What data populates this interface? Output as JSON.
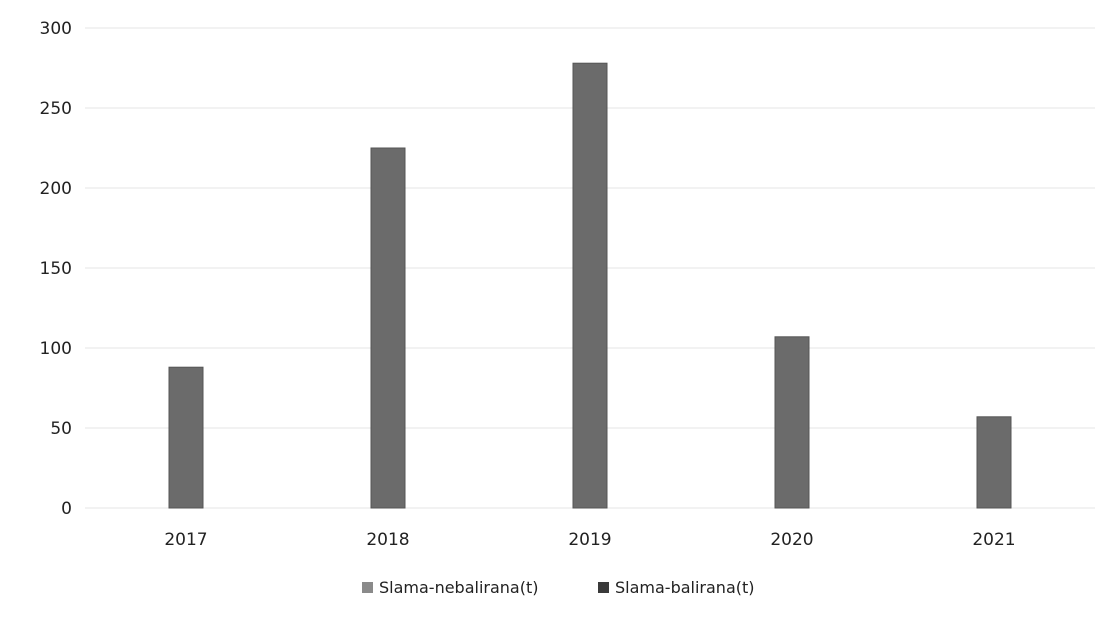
{
  "chart_data": {
    "type": "bar",
    "categories": [
      "2017",
      "2018",
      "2019",
      "2020",
      "2021"
    ],
    "series": [
      {
        "name": "Slama-nebalirana(t)",
        "values": [
          0,
          0,
          0,
          0,
          0
        ],
        "color": "#8a8a8a"
      },
      {
        "name": "Slama-balirana(t)",
        "values": [
          88,
          225,
          278,
          107,
          57
        ],
        "color": "#6b6b6b"
      }
    ],
    "yticks": [
      "0",
      "50",
      "100",
      "150",
      "200",
      "250",
      "300"
    ],
    "ylim": [
      0,
      300
    ],
    "title": "",
    "xlabel": "",
    "ylabel": "",
    "grid": true,
    "legend_position": "bottom"
  }
}
